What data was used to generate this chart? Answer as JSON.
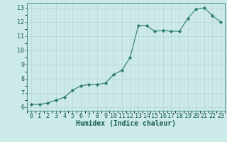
{
  "x": [
    0,
    1,
    2,
    3,
    4,
    5,
    6,
    7,
    8,
    9,
    10,
    11,
    12,
    13,
    14,
    15,
    16,
    17,
    18,
    19,
    20,
    21,
    22,
    23
  ],
  "y": [
    6.2,
    6.2,
    6.3,
    6.5,
    6.7,
    7.2,
    7.5,
    7.6,
    7.6,
    7.7,
    8.3,
    8.6,
    9.5,
    11.75,
    11.75,
    11.35,
    11.4,
    11.35,
    11.35,
    12.25,
    12.9,
    13.0,
    12.45,
    12.0
  ],
  "line_color": "#2e7d6e",
  "marker": "D",
  "marker_size": 2.2,
  "bg_color": "#cceae8",
  "grid_major_color": "#b8d8d6",
  "grid_minor_color": "#c8e4e2",
  "xlabel": "Humidex (Indice chaleur)",
  "xlim": [
    -0.5,
    23.5
  ],
  "ylim": [
    5.75,
    13.35
  ],
  "yticks": [
    6,
    7,
    8,
    9,
    10,
    11,
    12,
    13
  ],
  "xticks": [
    0,
    1,
    2,
    3,
    4,
    5,
    6,
    7,
    8,
    9,
    10,
    11,
    12,
    13,
    14,
    15,
    16,
    17,
    18,
    19,
    20,
    21,
    22,
    23
  ],
  "tick_fontsize": 6.0,
  "label_fontsize": 7.0
}
